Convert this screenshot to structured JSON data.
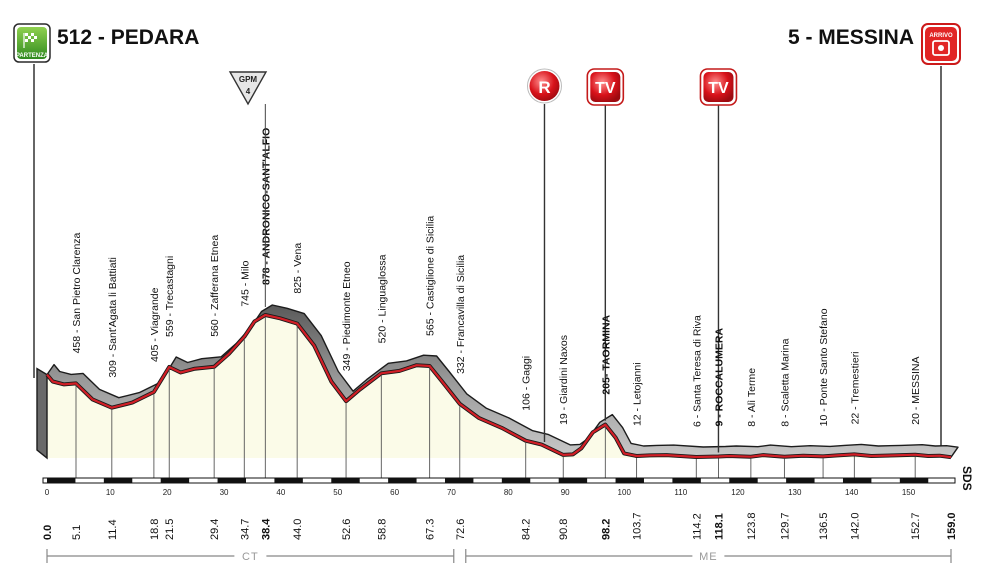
{
  "start": {
    "name": "512 - PEDARA",
    "badge": "PARTENZA"
  },
  "finish": {
    "name": "5 - MESSINA",
    "badge": "ARRIVO"
  },
  "kom": {
    "label": "GPM",
    "category": "4",
    "at_km": 38.4
  },
  "markers": [
    {
      "type": "R",
      "label": "R",
      "at_km": 87.5
    },
    {
      "type": "TV",
      "label": "TV",
      "at_km": 98.2
    },
    {
      "type": "TV",
      "label": "TV",
      "at_km": 118.1
    }
  ],
  "sds_label": "SDS",
  "sections": [
    {
      "label": "CT",
      "from_km": 0,
      "to_km": 72.6
    },
    {
      "label": "ME",
      "from_km": 72.6,
      "to_km": 159.0
    }
  ],
  "distance_ticks": [
    0,
    10,
    20,
    30,
    40,
    50,
    60,
    70,
    80,
    90,
    100,
    110,
    120,
    130,
    140,
    150
  ],
  "chart_data": {
    "type": "area",
    "xlim": [
      0,
      159
    ],
    "ylim": [
      0,
      900
    ],
    "profile": [
      [
        0,
        512
      ],
      [
        1,
        470
      ],
      [
        3,
        452
      ],
      [
        5.1,
        458
      ],
      [
        8,
        360
      ],
      [
        11.4,
        309
      ],
      [
        15,
        340
      ],
      [
        18.8,
        405
      ],
      [
        21.5,
        559
      ],
      [
        23.5,
        525
      ],
      [
        26,
        548
      ],
      [
        29.4,
        560
      ],
      [
        32,
        640
      ],
      [
        34.7,
        745
      ],
      [
        36.5,
        838
      ],
      [
        38.4,
        878
      ],
      [
        41,
        858
      ],
      [
        44.0,
        825
      ],
      [
        47,
        690
      ],
      [
        50,
        470
      ],
      [
        52.6,
        349
      ],
      [
        55,
        420
      ],
      [
        58.8,
        520
      ],
      [
        62,
        535
      ],
      [
        65,
        570
      ],
      [
        67.3,
        565
      ],
      [
        69.5,
        470
      ],
      [
        72.6,
        332
      ],
      [
        76,
        245
      ],
      [
        80,
        185
      ],
      [
        84.2,
        106
      ],
      [
        87,
        82
      ],
      [
        90.8,
        19
      ],
      [
        92.5,
        22
      ],
      [
        94,
        60
      ],
      [
        96,
        158
      ],
      [
        98.2,
        205
      ],
      [
        100,
        125
      ],
      [
        101.5,
        28
      ],
      [
        103.7,
        12
      ],
      [
        106,
        16
      ],
      [
        109,
        18
      ],
      [
        114.2,
        6
      ],
      [
        118.1,
        9
      ],
      [
        120,
        12
      ],
      [
        123.8,
        8
      ],
      [
        126,
        18
      ],
      [
        129.7,
        8
      ],
      [
        133,
        14
      ],
      [
        136.5,
        10
      ],
      [
        139,
        16
      ],
      [
        142.0,
        22
      ],
      [
        145,
        12
      ],
      [
        149,
        16
      ],
      [
        152.7,
        20
      ],
      [
        155,
        12
      ],
      [
        157,
        14
      ],
      [
        159.0,
        5
      ]
    ],
    "locations": [
      {
        "km": 5.1,
        "label": "458 - San Pietro Clarenza",
        "bold": false
      },
      {
        "km": 11.4,
        "label": "309 - Sant'Agata li Battiati",
        "bold": false
      },
      {
        "km": 18.8,
        "label": "405 - Viagrande",
        "bold": false
      },
      {
        "km": 21.5,
        "label": "559 - Trecastagni",
        "bold": false
      },
      {
        "km": 29.4,
        "label": "560 - Zafferana Etnea",
        "bold": false
      },
      {
        "km": 34.7,
        "label": "745 - Milo",
        "bold": false
      },
      {
        "km": 38.4,
        "label": "878 - ANDRONICO-SANT'ALFIO",
        "bold": true
      },
      {
        "km": 44.0,
        "label": "825 - Vena",
        "bold": false
      },
      {
        "km": 52.6,
        "label": "349 - Piedimonte Etneo",
        "bold": false
      },
      {
        "km": 58.8,
        "label": "520 - Linguaglossa",
        "bold": false
      },
      {
        "km": 67.3,
        "label": "565 - Castiglione di Sicilia",
        "bold": false
      },
      {
        "km": 72.6,
        "label": "332 - Francavilla di Sicilia",
        "bold": false
      },
      {
        "km": 84.2,
        "label": "106 - Gaggi",
        "bold": false
      },
      {
        "km": 90.8,
        "label": "19 - Giardini Naxos",
        "bold": false
      },
      {
        "km": 98.2,
        "label": "205- TAORMINA",
        "bold": true
      },
      {
        "km": 103.7,
        "label": "12 - Letojanni",
        "bold": false
      },
      {
        "km": 114.2,
        "label": "6 - Santa Teresa di Riva",
        "bold": false
      },
      {
        "km": 118.1,
        "label": "9 - ROCCALUMERA",
        "bold": true
      },
      {
        "km": 123.8,
        "label": "8 - Alì Terme",
        "bold": false
      },
      {
        "km": 129.7,
        "label": "8 - Scaletta Marina",
        "bold": false
      },
      {
        "km": 136.5,
        "label": "10 - Ponte Santo Stefano",
        "bold": false
      },
      {
        "km": 142.0,
        "label": "22 - Tremestieri",
        "bold": false
      },
      {
        "km": 152.7,
        "label": "20 - MESSINA",
        "bold": false
      }
    ],
    "distances": [
      {
        "km": 0.0,
        "label": "0.0",
        "bold": true
      },
      {
        "km": 5.1,
        "label": "5.1",
        "bold": false
      },
      {
        "km": 11.4,
        "label": "11.4",
        "bold": false
      },
      {
        "km": 18.8,
        "label": "18.8",
        "bold": false
      },
      {
        "km": 21.5,
        "label": "21.5",
        "bold": false
      },
      {
        "km": 29.4,
        "label": "29.4",
        "bold": false
      },
      {
        "km": 34.7,
        "label": "34.7",
        "bold": false
      },
      {
        "km": 38.4,
        "label": "38.4",
        "bold": true
      },
      {
        "km": 44.0,
        "label": "44.0",
        "bold": false
      },
      {
        "km": 52.6,
        "label": "52.6",
        "bold": false
      },
      {
        "km": 58.8,
        "label": "58.8",
        "bold": false
      },
      {
        "km": 67.3,
        "label": "67.3",
        "bold": false
      },
      {
        "km": 72.6,
        "label": "72.6",
        "bold": false
      },
      {
        "km": 84.2,
        "label": "84.2",
        "bold": false
      },
      {
        "km": 90.8,
        "label": "90.8",
        "bold": false
      },
      {
        "km": 98.2,
        "label": "98.2",
        "bold": true
      },
      {
        "km": 103.7,
        "label": "103.7",
        "bold": false
      },
      {
        "km": 114.2,
        "label": "114.2",
        "bold": false
      },
      {
        "km": 118.1,
        "label": "118.1",
        "bold": true
      },
      {
        "km": 123.8,
        "label": "123.8",
        "bold": false
      },
      {
        "km": 129.7,
        "label": "129.7",
        "bold": false
      },
      {
        "km": 136.5,
        "label": "136.5",
        "bold": false
      },
      {
        "km": 142.0,
        "label": "142.0",
        "bold": false
      },
      {
        "km": 152.7,
        "label": "152.7",
        "bold": false
      },
      {
        "km": 159.0,
        "label": "159.0",
        "bold": true
      }
    ]
  }
}
